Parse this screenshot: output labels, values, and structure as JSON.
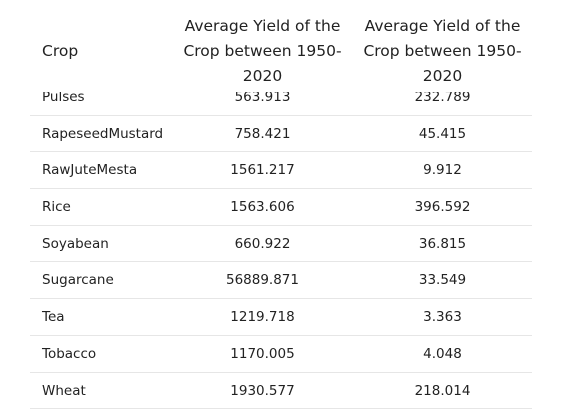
{
  "table": {
    "header": [
      "Crop",
      "Average Yield of the Crop between 1950-2020",
      "Average Yield of the Crop between 1950-2020"
    ],
    "rows": [
      [
        "Pulses",
        "563.913",
        "232.789"
      ],
      [
        "RapeseedMustard",
        "758.421",
        "45.415"
      ],
      [
        "RawJuteMesta",
        "1561.217",
        "9.912"
      ],
      [
        "Rice",
        "1563.606",
        "396.592"
      ],
      [
        "Soyabean",
        "660.922",
        "36.815"
      ],
      [
        "Sugarcane",
        "56889.871",
        "33.549"
      ],
      [
        "Tea",
        "1219.718",
        "3.363"
      ],
      [
        "Tobacco",
        "1170.005",
        "4.048"
      ],
      [
        "Wheat",
        "1930.577",
        "218.014"
      ]
    ]
  }
}
